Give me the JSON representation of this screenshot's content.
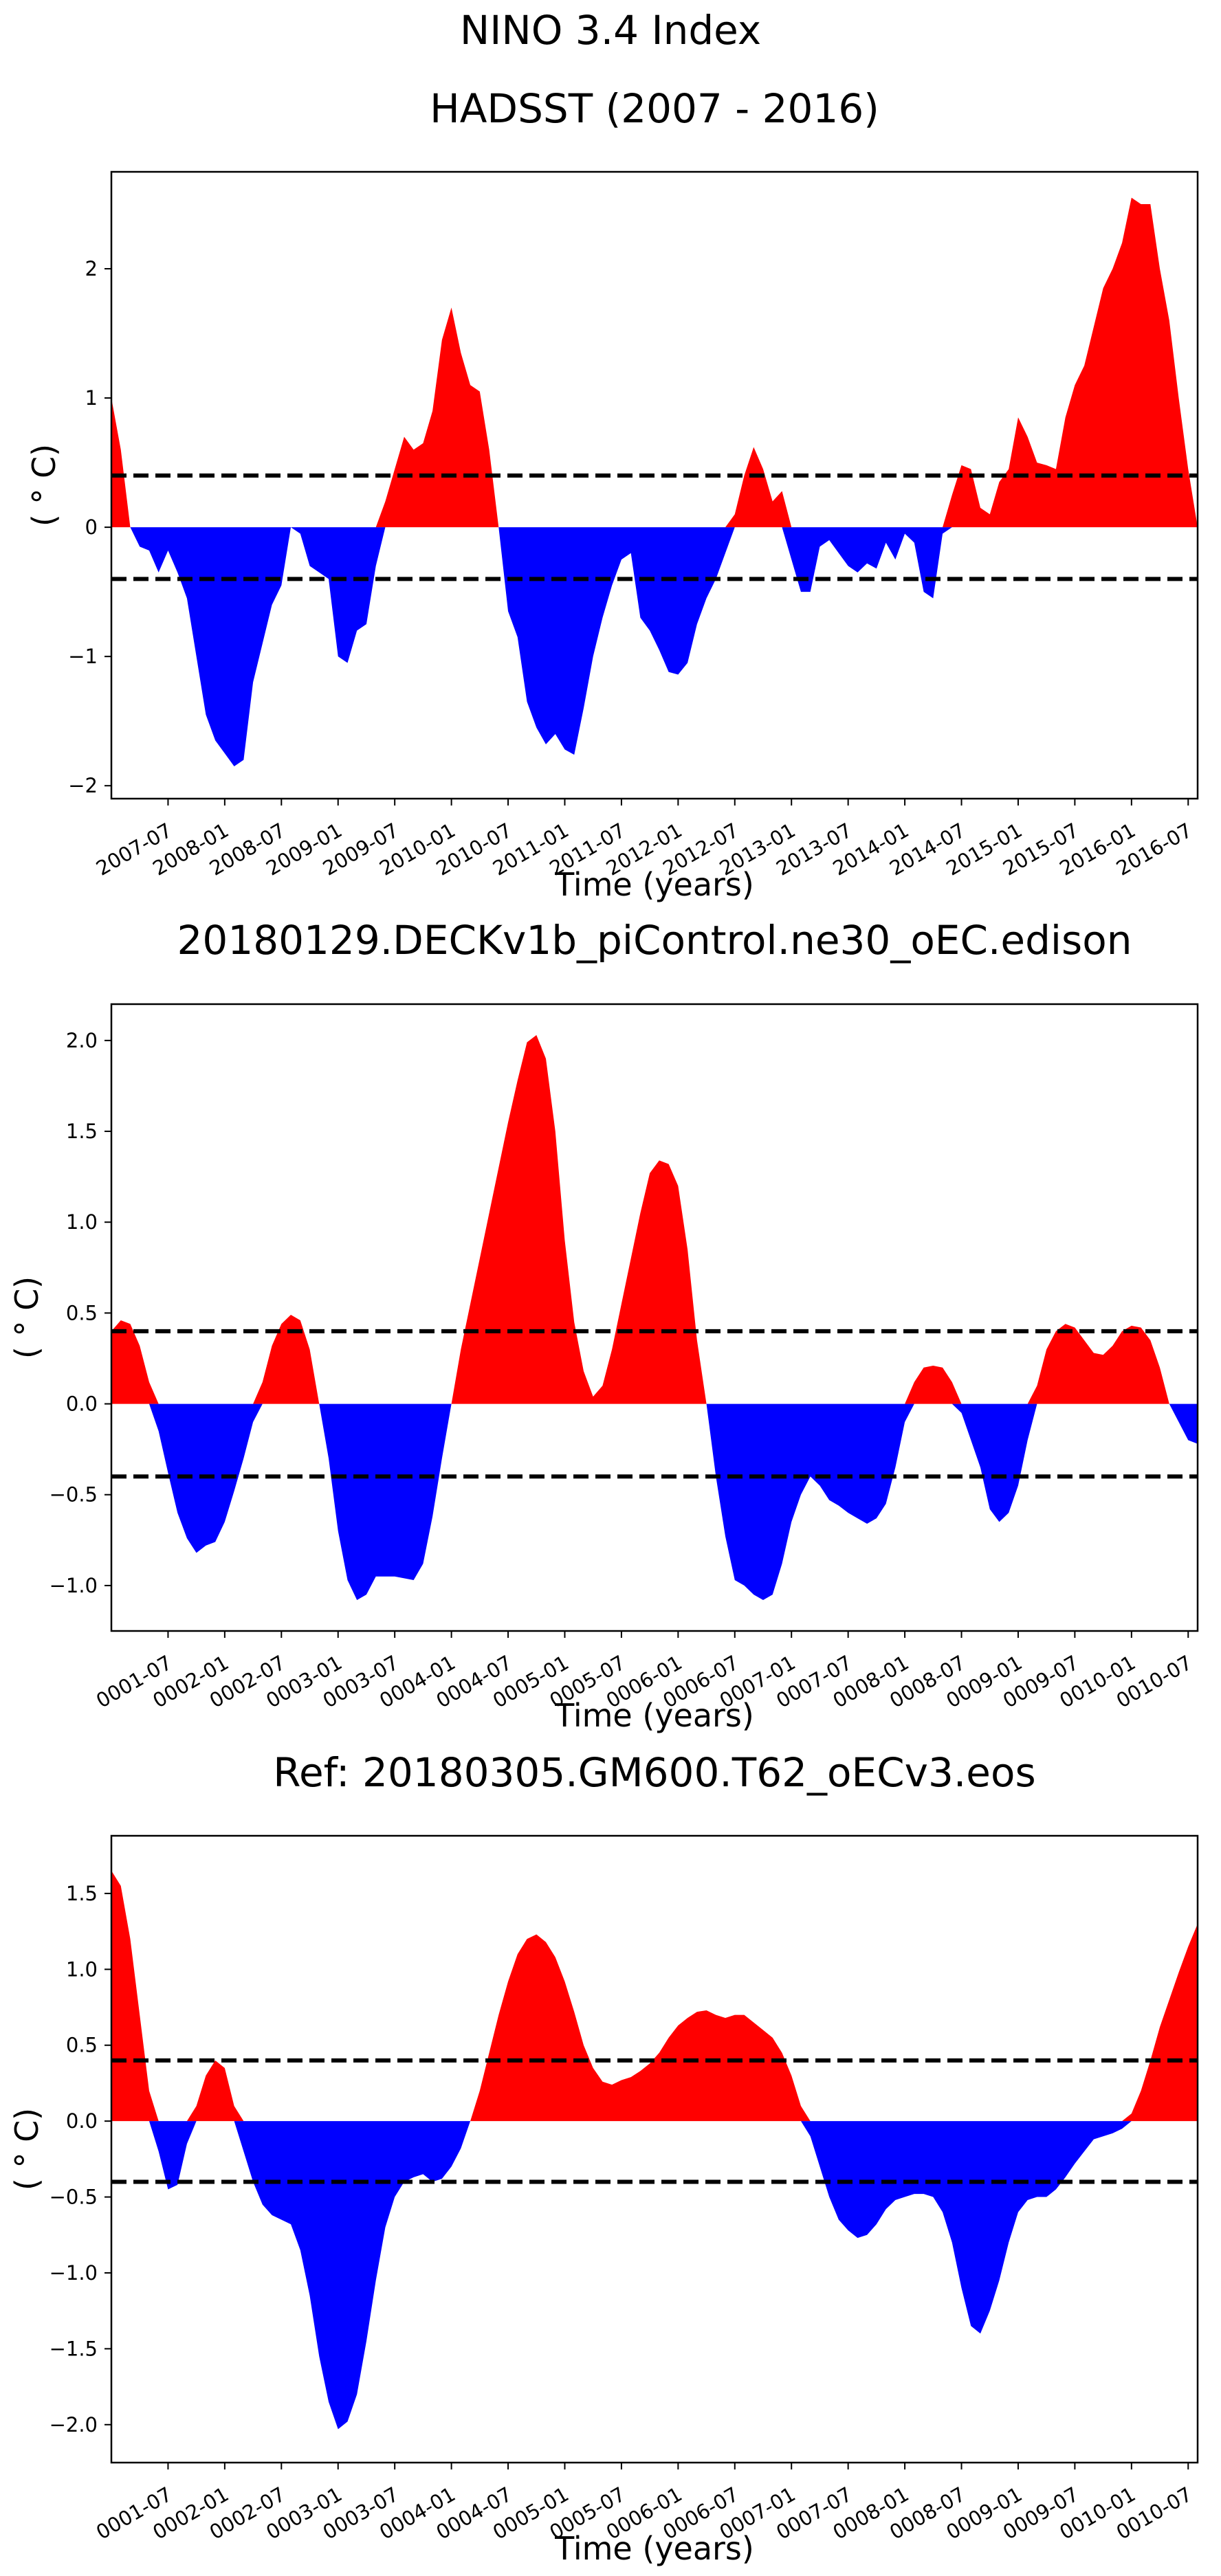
{
  "figure": {
    "suptitle": "NINO 3.4 Index"
  },
  "colors": {
    "positive": "#ff0000",
    "negative": "#0000ff",
    "threshold": "#000000"
  },
  "chart_data": [
    {
      "type": "area",
      "title": "HADSST (2007 - 2016)",
      "xlabel": "Time (years)",
      "ylabel": "( ° C)",
      "threshold": 0.4,
      "xlim": [
        0,
        115
      ],
      "ylim": [
        -2.1,
        2.75
      ],
      "yticks": [
        -2,
        -1,
        0,
        1,
        2
      ],
      "ytick_labels": [
        "−2",
        "−1",
        "0",
        "1",
        "2"
      ],
      "xticks": [
        6,
        12,
        18,
        24,
        30,
        36,
        42,
        48,
        54,
        60,
        66,
        72,
        78,
        84,
        90,
        96,
        102,
        108,
        114
      ],
      "xtick_labels": [
        "2007-07",
        "2008-01",
        "2008-07",
        "2009-01",
        "2009-07",
        "2010-01",
        "2010-07",
        "2011-01",
        "2011-07",
        "2012-01",
        "2012-07",
        "2013-01",
        "2013-07",
        "2014-01",
        "2014-07",
        "2015-01",
        "2015-07",
        "2016-01",
        "2016-07"
      ],
      "x": [
        0,
        1,
        2,
        3,
        4,
        5,
        6,
        7,
        8,
        9,
        10,
        11,
        12,
        13,
        14,
        15,
        16,
        17,
        18,
        19,
        20,
        21,
        22,
        23,
        24,
        25,
        26,
        27,
        28,
        29,
        30,
        31,
        32,
        33,
        34,
        35,
        36,
        37,
        38,
        39,
        40,
        41,
        42,
        43,
        44,
        45,
        46,
        47,
        48,
        49,
        50,
        51,
        52,
        53,
        54,
        55,
        56,
        57,
        58,
        59,
        60,
        61,
        62,
        63,
        64,
        65,
        66,
        67,
        68,
        69,
        70,
        71,
        72,
        73,
        74,
        75,
        76,
        77,
        78,
        79,
        80,
        81,
        82,
        83,
        84,
        85,
        86,
        87,
        88,
        89,
        90,
        91,
        92,
        93,
        94,
        95,
        96,
        97,
        98,
        99,
        100,
        101,
        102,
        103,
        104,
        105,
        106,
        107,
        108,
        109,
        110,
        111,
        112,
        113,
        114,
        115
      ],
      "values": [
        1.0,
        0.6,
        0.0,
        -0.15,
        -0.18,
        -0.35,
        -0.18,
        -0.35,
        -0.55,
        -1.0,
        -1.45,
        -1.65,
        -1.75,
        -1.85,
        -1.8,
        -1.2,
        -0.9,
        -0.6,
        -0.45,
        0.0,
        -0.05,
        -0.3,
        -0.35,
        -0.4,
        -1.0,
        -1.05,
        -0.8,
        -0.75,
        -0.3,
        0.2,
        0.45,
        0.7,
        0.6,
        0.65,
        0.9,
        1.45,
        1.7,
        1.35,
        1.1,
        1.05,
        0.6,
        0.0,
        -0.65,
        -0.85,
        -1.35,
        -1.55,
        -1.68,
        -1.6,
        -1.72,
        -1.76,
        -1.4,
        -1.0,
        -0.7,
        -0.45,
        -0.25,
        -0.2,
        -0.7,
        -0.8,
        -0.95,
        -1.12,
        -1.14,
        -1.05,
        -0.75,
        -0.55,
        -0.4,
        -0.2,
        0.1,
        0.4,
        0.62,
        0.45,
        0.2,
        0.28,
        -0.25,
        -0.5,
        -0.5,
        -0.15,
        -0.1,
        -0.2,
        -0.3,
        -0.35,
        -0.28,
        -0.32,
        -0.12,
        -0.25,
        -0.05,
        -0.12,
        -0.5,
        -0.55,
        -0.05,
        0.25,
        0.48,
        0.45,
        0.15,
        0.1,
        0.35,
        0.45,
        0.85,
        0.7,
        0.5,
        0.48,
        0.45,
        0.85,
        1.1,
        1.25,
        1.55,
        1.85,
        2.0,
        2.2,
        2.55,
        2.5,
        2.5,
        2.0,
        1.6,
        1.0,
        0.45,
        0.0
      ]
    },
    {
      "type": "area",
      "title": "20180129.DECKv1b_piControl.ne30_oEC.edison",
      "xlabel": "Time (years)",
      "ylabel": "( ° C)",
      "threshold": 0.4,
      "xlim": [
        0,
        115
      ],
      "ylim": [
        -1.25,
        2.2
      ],
      "yticks": [
        -1.0,
        -0.5,
        0.0,
        0.5,
        1.0,
        1.5,
        2.0
      ],
      "ytick_labels": [
        "−1.0",
        "−0.5",
        "0.0",
        "0.5",
        "1.0",
        "1.5",
        "2.0"
      ],
      "xticks": [
        6,
        12,
        18,
        24,
        30,
        36,
        42,
        48,
        54,
        60,
        66,
        72,
        78,
        84,
        90,
        96,
        102,
        108,
        114
      ],
      "xtick_labels": [
        "0001-07",
        "0002-01",
        "0002-07",
        "0003-01",
        "0003-07",
        "0004-01",
        "0004-07",
        "0005-01",
        "0005-07",
        "0006-01",
        "0006-07",
        "0007-01",
        "0007-07",
        "0008-01",
        "0008-07",
        "0009-01",
        "0009-07",
        "0010-01",
        "0010-07"
      ],
      "x": [
        0,
        1,
        2,
        3,
        4,
        5,
        6,
        7,
        8,
        9,
        10,
        11,
        12,
        13,
        14,
        15,
        16,
        17,
        18,
        19,
        20,
        21,
        22,
        23,
        24,
        25,
        26,
        27,
        28,
        29,
        30,
        31,
        32,
        33,
        34,
        35,
        36,
        37,
        38,
        39,
        40,
        41,
        42,
        43,
        44,
        45,
        46,
        47,
        48,
        49,
        50,
        51,
        52,
        53,
        54,
        55,
        56,
        57,
        58,
        59,
        60,
        61,
        62,
        63,
        64,
        65,
        66,
        67,
        68,
        69,
        70,
        71,
        72,
        73,
        74,
        75,
        76,
        77,
        78,
        79,
        80,
        81,
        82,
        83,
        84,
        85,
        86,
        87,
        88,
        89,
        90,
        91,
        92,
        93,
        94,
        95,
        96,
        97,
        98,
        99,
        100,
        101,
        102,
        103,
        104,
        105,
        106,
        107,
        108,
        109,
        110,
        111,
        112,
        113,
        114,
        115
      ],
      "values": [
        0.4,
        0.46,
        0.44,
        0.32,
        0.12,
        -0.15,
        -0.38,
        -0.6,
        -0.74,
        -0.82,
        -0.78,
        -0.76,
        -0.65,
        -0.48,
        -0.3,
        -0.1,
        0.12,
        0.32,
        0.44,
        0.49,
        0.46,
        0.3,
        0.0,
        -0.3,
        -0.7,
        -0.97,
        -1.08,
        -1.05,
        -0.95,
        -0.95,
        -0.95,
        -0.96,
        -0.97,
        -0.88,
        -0.62,
        -0.3,
        0.0,
        0.3,
        0.55,
        0.8,
        1.05,
        1.3,
        1.55,
        1.78,
        1.99,
        2.03,
        1.9,
        1.5,
        0.9,
        0.45,
        0.18,
        0.04,
        0.1,
        0.3,
        0.55,
        0.8,
        1.05,
        1.27,
        1.34,
        1.32,
        1.2,
        0.85,
        0.35,
        0.0,
        -0.4,
        -0.73,
        -0.97,
        -1.0,
        -1.05,
        -1.08,
        -1.05,
        -0.88,
        -0.65,
        -0.5,
        -0.4,
        -0.45,
        -0.53,
        -0.56,
        -0.6,
        -0.63,
        -0.66,
        -0.63,
        -0.55,
        -0.35,
        -0.1,
        0.12,
        0.2,
        0.21,
        0.2,
        0.12,
        -0.05,
        -0.2,
        -0.35,
        -0.58,
        -0.65,
        -0.6,
        -0.45,
        -0.2,
        0.1,
        0.3,
        0.4,
        0.44,
        0.42,
        0.35,
        0.28,
        0.27,
        0.32,
        0.4,
        0.43,
        0.42,
        0.35,
        0.2,
        0.0,
        -0.1,
        -0.2,
        -0.22
      ]
    },
    {
      "type": "area",
      "title": "Ref: 20180305.GM600.T62_oECv3.eos",
      "xlabel": "Time (years)",
      "ylabel": "( ° C)",
      "threshold": 0.4,
      "xlim": [
        0,
        115
      ],
      "ylim": [
        -2.25,
        1.88
      ],
      "yticks": [
        -2.0,
        -1.5,
        -1.0,
        -0.5,
        0.0,
        0.5,
        1.0,
        1.5
      ],
      "ytick_labels": [
        "−2.0",
        "−1.5",
        "−1.0",
        "−0.5",
        "0.0",
        "0.5",
        "1.0",
        "1.5"
      ],
      "xticks": [
        6,
        12,
        18,
        24,
        30,
        36,
        42,
        48,
        54,
        60,
        66,
        72,
        78,
        84,
        90,
        96,
        102,
        108,
        114
      ],
      "xtick_labels": [
        "0001-07",
        "0002-01",
        "0002-07",
        "0003-01",
        "0003-07",
        "0004-01",
        "0004-07",
        "0005-01",
        "0005-07",
        "0006-01",
        "0006-07",
        "0007-01",
        "0007-07",
        "0008-01",
        "0008-07",
        "0009-01",
        "0009-07",
        "0010-01",
        "0010-07"
      ],
      "x": [
        0,
        1,
        2,
        3,
        4,
        5,
        6,
        7,
        8,
        9,
        10,
        11,
        12,
        13,
        14,
        15,
        16,
        17,
        18,
        19,
        20,
        21,
        22,
        23,
        24,
        25,
        26,
        27,
        28,
        29,
        30,
        31,
        32,
        33,
        34,
        35,
        36,
        37,
        38,
        39,
        40,
        41,
        42,
        43,
        44,
        45,
        46,
        47,
        48,
        49,
        50,
        51,
        52,
        53,
        54,
        55,
        56,
        57,
        58,
        59,
        60,
        61,
        62,
        63,
        64,
        65,
        66,
        67,
        68,
        69,
        70,
        71,
        72,
        73,
        74,
        75,
        76,
        77,
        78,
        79,
        80,
        81,
        82,
        83,
        84,
        85,
        86,
        87,
        88,
        89,
        90,
        91,
        92,
        93,
        94,
        95,
        96,
        97,
        98,
        99,
        100,
        101,
        102,
        103,
        104,
        105,
        106,
        107,
        108,
        109,
        110,
        111,
        112,
        113,
        114,
        115
      ],
      "values": [
        1.65,
        1.55,
        1.2,
        0.7,
        0.2,
        -0.2,
        -0.45,
        -0.42,
        -0.15,
        0.1,
        0.3,
        0.4,
        0.35,
        0.1,
        -0.2,
        -0.4,
        -0.55,
        -0.62,
        -0.65,
        -0.68,
        -0.85,
        -1.15,
        -1.55,
        -1.85,
        -2.03,
        -1.98,
        -1.8,
        -1.45,
        -1.05,
        -0.7,
        -0.5,
        -0.4,
        -0.37,
        -0.35,
        -0.4,
        -0.38,
        -0.3,
        -0.18,
        0.0,
        0.2,
        0.45,
        0.7,
        0.92,
        1.1,
        1.2,
        1.23,
        1.18,
        1.08,
        0.92,
        0.72,
        0.5,
        0.35,
        0.26,
        0.24,
        0.27,
        0.29,
        0.33,
        0.38,
        0.45,
        0.55,
        0.63,
        0.68,
        0.72,
        0.73,
        0.7,
        0.68,
        0.7,
        0.7,
        0.65,
        0.6,
        0.55,
        0.45,
        0.3,
        0.1,
        -0.1,
        -0.3,
        -0.5,
        -0.65,
        -0.72,
        -0.77,
        -0.75,
        -0.68,
        -0.58,
        -0.52,
        -0.5,
        -0.48,
        -0.48,
        -0.5,
        -0.6,
        -0.8,
        -1.1,
        -1.35,
        -1.4,
        -1.25,
        -1.05,
        -0.8,
        -0.6,
        -0.52,
        -0.5,
        -0.5,
        -0.45,
        -0.37,
        -0.28,
        -0.2,
        -0.12,
        -0.1,
        -0.08,
        -0.05,
        0.05,
        0.2,
        0.4,
        0.62,
        0.8,
        0.98,
        1.15,
        1.3
      ]
    }
  ]
}
